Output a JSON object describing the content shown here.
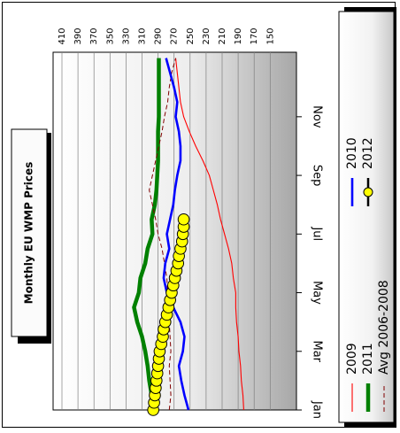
{
  "chart_data": {
    "type": "line",
    "title": "Monthly EU WMP Prices",
    "xlabel": "",
    "ylabel": "",
    "x_tick_labels": [
      "Jan",
      "Mar",
      "May",
      "Jul",
      "Sep",
      "Nov"
    ],
    "y_tick_labels": [
      "410",
      "390",
      "370",
      "350",
      "330",
      "310",
      "290",
      "270",
      "250",
      "230",
      "210",
      "190",
      "170",
      "150"
    ],
    "ylim": [
      150,
      420
    ],
    "xlim": [
      0,
      12.2
    ],
    "orientation": "rotated-90-clockwise",
    "grid": true,
    "legend_position": "right",
    "series": [
      {
        "name": "2009",
        "color": "#ff0000",
        "style": "thin-solid",
        "x": [
          0,
          0.5,
          1,
          1.5,
          2,
          2.5,
          3,
          3.5,
          4,
          4.5,
          5,
          5.5,
          6,
          6.5,
          7,
          7.5,
          8,
          8.5,
          9,
          9.5,
          10,
          10.5,
          11,
          11.5,
          12
        ],
        "values": [
          183,
          184,
          186,
          187,
          189,
          190,
          192,
          193,
          193,
          196,
          198,
          202,
          207,
          212,
          216,
          221,
          226,
          234,
          243,
          251,
          258,
          262,
          264,
          266,
          268
        ]
      },
      {
        "name": "2011",
        "color": "#008000",
        "style": "thick-solid",
        "x": [
          0,
          0.5,
          1,
          1.5,
          2,
          2.5,
          3,
          3.5,
          4,
          4.5,
          5,
          5.5,
          6,
          6.5,
          7,
          7.5,
          8,
          8.5,
          9,
          9.5,
          10,
          10.5,
          11,
          11.5,
          12
        ],
        "values": [
          294,
          298,
          301,
          303,
          306,
          310,
          316,
          320,
          314,
          312,
          306,
          303,
          297,
          298,
          294,
          292,
          291,
          290,
          290,
          290,
          289,
          289,
          289,
          289,
          289
        ]
      },
      {
        "name": "Avg 2006-2008",
        "color": "#800000",
        "style": "thin-dashed",
        "x": [
          0,
          0.5,
          1,
          1.5,
          2,
          2.5,
          3,
          3.5,
          4,
          4.5,
          5,
          5.5,
          6,
          6.5,
          7,
          7.5,
          8,
          8.5,
          9,
          9.5,
          10,
          10.5,
          11,
          11.5,
          12
        ],
        "values": [
          276,
          274,
          275,
          276,
          274,
          275,
          276,
          276,
          278,
          279,
          282,
          285,
          290,
          293,
          297,
          301,
          297,
          293,
          289,
          285,
          282,
          278,
          276,
          273,
          268
        ]
      },
      {
        "name": "2010",
        "color": "#0000ff",
        "style": "thin-solid",
        "x": [
          0,
          0.5,
          1,
          1.5,
          2,
          2.5,
          3,
          3.5,
          4,
          4.5,
          5,
          5.5,
          6,
          6.5,
          7,
          7.5,
          8,
          8.5,
          9,
          9.5,
          10,
          10.5,
          11,
          11.5,
          12
        ],
        "values": [
          252,
          257,
          261,
          264,
          259,
          257,
          262,
          271,
          279,
          283,
          281,
          276,
          279,
          275,
          271,
          269,
          266,
          262,
          262,
          264,
          268,
          266,
          270,
          275,
          280
        ]
      },
      {
        "name": "2012",
        "color": "#ffff00",
        "style": "markers",
        "x": [
          0,
          0.25,
          0.5,
          0.75,
          1,
          1.25,
          1.5,
          1.75,
          2,
          2.25,
          2.5,
          2.75,
          3,
          3.25,
          3.5,
          3.75,
          4,
          4.25,
          4.5,
          4.75,
          5,
          5.25,
          5.5,
          5.75,
          6,
          6.25,
          6.5
        ],
        "values": [
          296,
          295,
          294,
          293,
          292,
          291,
          290,
          289,
          288,
          286,
          284,
          283,
          281,
          279,
          277,
          275,
          273,
          271,
          269,
          267,
          265,
          264,
          262,
          260,
          259,
          258,
          258
        ]
      }
    ]
  }
}
